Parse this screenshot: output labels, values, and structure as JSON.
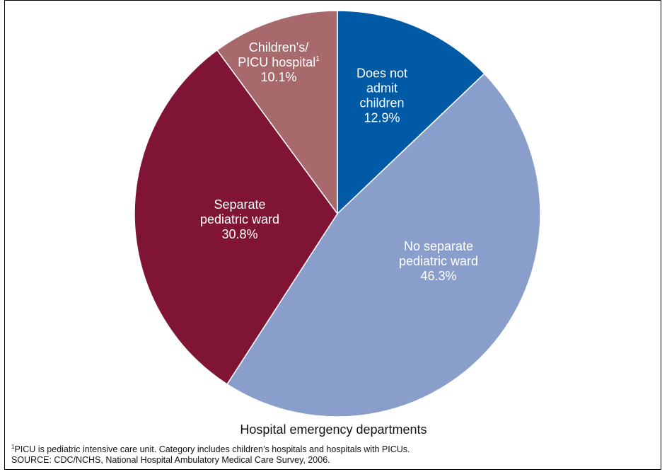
{
  "chart_data": {
    "type": "pie",
    "xlabel": "Hospital emergency departments",
    "slices": [
      {
        "lines": [
          "Does not",
          "admit",
          "children"
        ],
        "value": 12.9,
        "value_label": "12.9%",
        "color": "#005aa6"
      },
      {
        "lines": [
          "No separate",
          "pediatric ward"
        ],
        "value": 46.3,
        "value_label": "46.3%",
        "color": "#8a9ecc"
      },
      {
        "lines": [
          "Separate",
          "pediatric ward"
        ],
        "value": 30.8,
        "value_label": "30.8%",
        "color": "#801434"
      },
      {
        "lines": [
          "Children's/",
          "PICU hospital"
        ],
        "sup": "1",
        "value": 10.1,
        "value_label": "10.1%",
        "color": "#a8696c"
      }
    ]
  },
  "footnote": {
    "marker": "1",
    "text": "PICU is pediatric intensive care unit. Category includes children’s hospitals and hospitals with PICUs."
  },
  "source": "SOURCE: CDC/NCHS, National Hospital Ambulatory Medical Care Survey, 2006."
}
